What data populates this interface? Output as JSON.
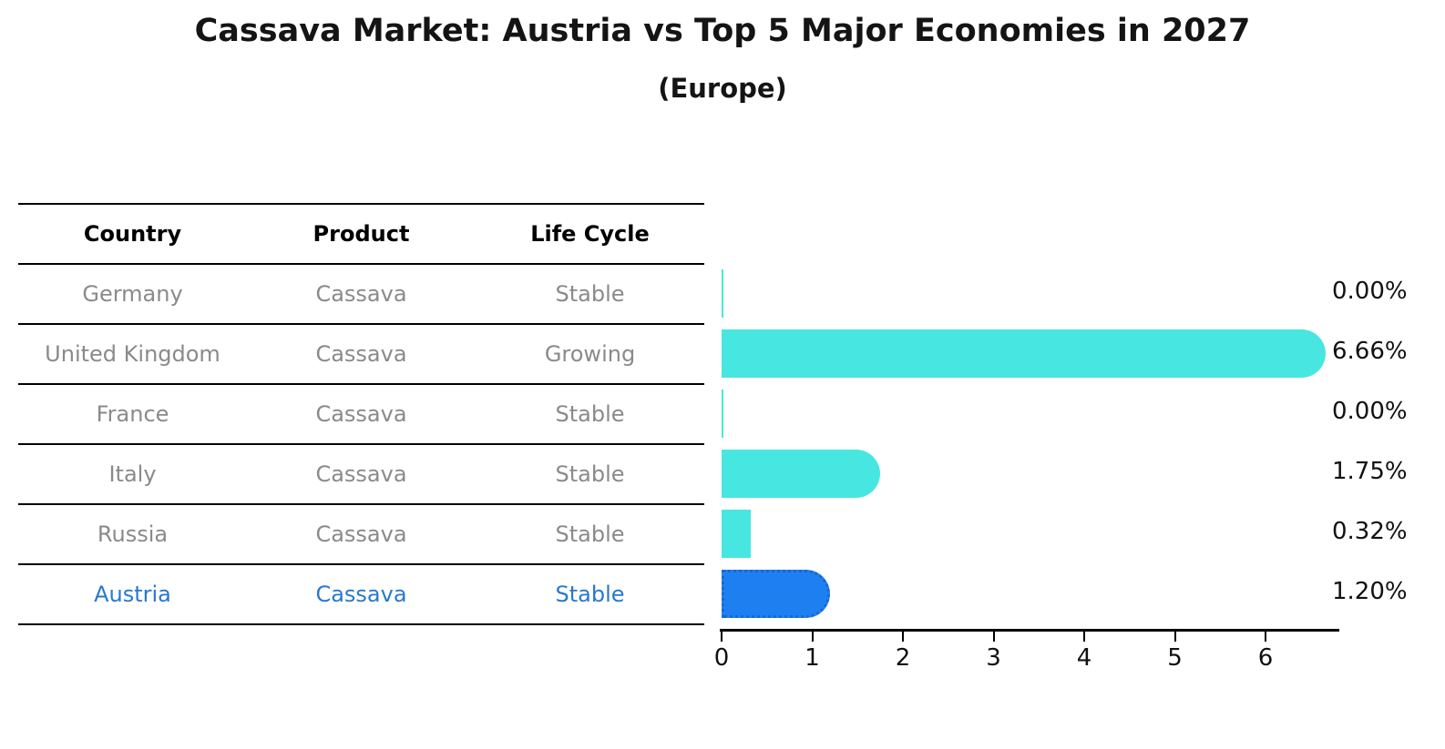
{
  "title": "Cassava Market: Austria vs Top 5 Major Economies in 2027",
  "subtitle": "(Europe)",
  "colors": {
    "bar": "#48e6e1",
    "bar_highlight": "#1e80f0",
    "bar_highlight_border": "#1668d8",
    "table_header_text": "#000000",
    "table_text": "#8a8a8a",
    "highlight_text": "#2878ce",
    "axis": "#000000",
    "value_label": "#111111"
  },
  "table": {
    "columns": [
      "Country",
      "Product",
      "Life Cycle"
    ],
    "rows": [
      {
        "country": "Germany",
        "product": "Cassava",
        "life_cycle": "Stable",
        "highlight": false
      },
      {
        "country": "United Kingdom",
        "product": "Cassava",
        "life_cycle": "Growing",
        "highlight": false
      },
      {
        "country": "France",
        "product": "Cassava",
        "life_cycle": "Stable",
        "highlight": false
      },
      {
        "country": "Italy",
        "product": "Cassava",
        "life_cycle": "Stable",
        "highlight": false
      },
      {
        "country": "Russia",
        "product": "Cassava",
        "life_cycle": "Stable",
        "highlight": false
      },
      {
        "country": "Austria",
        "product": "Cassava",
        "life_cycle": "Stable",
        "highlight": true
      }
    ]
  },
  "chart_data": {
    "type": "bar",
    "orientation": "horizontal",
    "title": "Cassava Market: Austria vs Top 5 Major Economies in 2027 (Europe)",
    "categories": [
      "Germany",
      "United Kingdom",
      "France",
      "Italy",
      "Russia",
      "Austria"
    ],
    "values": [
      0.0,
      6.66,
      0.0,
      1.75,
      0.32,
      1.2
    ],
    "value_labels": [
      "0.00%",
      "6.66%",
      "0.00%",
      "1.75%",
      "0.32%",
      "1.20%"
    ],
    "highlight_category": "Austria",
    "highlight_index": 5,
    "xlabel": "",
    "ylabel": "",
    "xlim": [
      0,
      6.9
    ],
    "xticks": [
      0,
      1,
      2,
      3,
      4,
      5,
      6
    ],
    "grid": false,
    "legend": false
  }
}
